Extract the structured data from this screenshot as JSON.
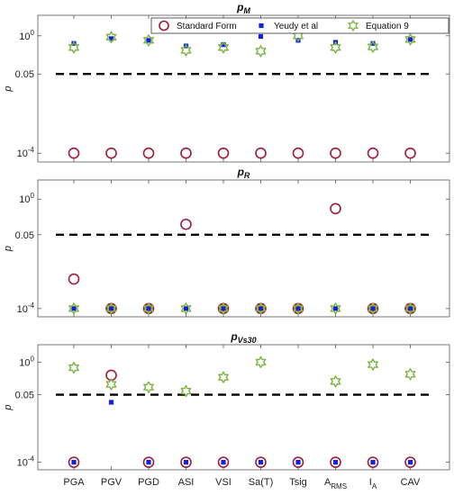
{
  "colors": {
    "standard_form": "#9b1b3a",
    "yeudy": "#1122dd",
    "equation9": "#7cb342",
    "threshold": "#000000",
    "overlap_fill": "#f0a030"
  },
  "chart_data": [
    {
      "type": "scatter",
      "title": "p",
      "title_sub": "M",
      "ylabel": "p",
      "yscale": "log",
      "ylim": [
        5e-05,
        5
      ],
      "yticks": [
        {
          "value": 1,
          "label": "10",
          "sup": "0"
        },
        {
          "value": 0.05,
          "label": "0.05",
          "sup": ""
        },
        {
          "value": 0.0001,
          "label": "10",
          "sup": "-4"
        }
      ],
      "threshold": 0.05,
      "categories": [
        "PGA",
        "PGV",
        "PGD",
        "ASI",
        "VSI",
        "Sa(T)",
        "Tsig",
        "A_RMS",
        "I_A",
        "CAV"
      ],
      "legend": {
        "placement": "top-center",
        "entries": [
          "Standard Form",
          "Yeudy et al",
          "Equation 9"
        ]
      },
      "series": [
        {
          "name": "Standard Form",
          "marker": "circle",
          "values": [
            0.0001,
            0.0001,
            0.0001,
            0.0001,
            0.0001,
            0.0001,
            0.0001,
            0.0001,
            0.0001,
            0.0001
          ]
        },
        {
          "name": "Yeudy et al",
          "marker": "square",
          "values": [
            0.55,
            0.8,
            0.7,
            0.45,
            0.5,
            0.95,
            0.7,
            0.6,
            0.55,
            0.75
          ]
        },
        {
          "name": "Equation 9",
          "marker": "star",
          "values": [
            0.4,
            0.9,
            0.7,
            0.32,
            0.4,
            0.3,
            1.0,
            0.4,
            0.42,
            0.75
          ]
        }
      ]
    },
    {
      "type": "scatter",
      "title": "p",
      "title_sub": "R",
      "ylabel": "p",
      "yscale": "log",
      "ylim": [
        5e-05,
        5
      ],
      "yticks": [
        {
          "value": 1,
          "label": "10",
          "sup": "0"
        },
        {
          "value": 0.05,
          "label": "0.05",
          "sup": ""
        },
        {
          "value": 0.0001,
          "label": "10",
          "sup": "-4"
        }
      ],
      "threshold": 0.05,
      "categories": [
        "PGA",
        "PGV",
        "PGD",
        "ASI",
        "VSI",
        "Sa(T)",
        "Tsig",
        "A_RMS",
        "I_A",
        "CAV"
      ],
      "series": [
        {
          "name": "Standard Form",
          "marker": "circle",
          "values": [
            0.0012,
            0.0001,
            0.0001,
            0.12,
            0.0001,
            0.0001,
            0.0001,
            0.45,
            0.0001,
            0.0001
          ]
        },
        {
          "name": "Yeudy et al",
          "marker": "square",
          "values": [
            0.0001,
            0.0001,
            0.0001,
            0.0001,
            0.0001,
            0.0001,
            0.0001,
            0.0001,
            0.0001,
            0.0001
          ]
        },
        {
          "name": "Equation 9",
          "marker": "star",
          "values": [
            0.0001,
            0.0001,
            0.0001,
            0.0001,
            0.0001,
            0.0001,
            0.0001,
            0.0001,
            0.0001,
            0.0001
          ]
        }
      ]
    },
    {
      "type": "scatter",
      "title": "p",
      "title_sub": "Vs30",
      "ylabel": "p",
      "yscale": "log",
      "ylim": [
        5e-05,
        5
      ],
      "yticks": [
        {
          "value": 1,
          "label": "10",
          "sup": "0"
        },
        {
          "value": 0.05,
          "label": "0.05",
          "sup": ""
        },
        {
          "value": 0.0001,
          "label": "10",
          "sup": "-4"
        }
      ],
      "threshold": 0.05,
      "categories": [
        "PGA",
        "PGV",
        "PGD",
        "ASI",
        "VSI",
        "Sa(T)",
        "Tsig",
        "A_RMS",
        "I_A",
        "CAV"
      ],
      "xticklabels": [
        {
          "label": "PGA",
          "sub": ""
        },
        {
          "label": "PGV",
          "sub": ""
        },
        {
          "label": "PGD",
          "sub": ""
        },
        {
          "label": "ASI",
          "sub": ""
        },
        {
          "label": "VSI",
          "sub": ""
        },
        {
          "label": "Sa(T)",
          "sub": ""
        },
        {
          "label": "Tsig",
          "sub": ""
        },
        {
          "label": "A",
          "sub": "RMS"
        },
        {
          "label": "I",
          "sub": "A"
        },
        {
          "label": "CAV",
          "sub": ""
        }
      ],
      "series": [
        {
          "name": "Standard Form",
          "marker": "circle",
          "values": [
            0.0001,
            0.3,
            0.0001,
            0.0001,
            0.0001,
            0.0001,
            0.0001,
            0.0001,
            0.0001,
            0.0001
          ]
        },
        {
          "name": "Yeudy et al",
          "marker": "square",
          "values": [
            0.0001,
            0.025,
            0.0001,
            0.0001,
            0.0001,
            0.0001,
            0.0001,
            0.0001,
            0.0001,
            0.0001
          ]
        },
        {
          "name": "Equation 9",
          "marker": "star",
          "values": [
            0.6,
            0.13,
            0.1,
            0.07,
            0.25,
            1.0,
            null,
            0.17,
            0.8,
            0.33
          ]
        }
      ]
    }
  ]
}
